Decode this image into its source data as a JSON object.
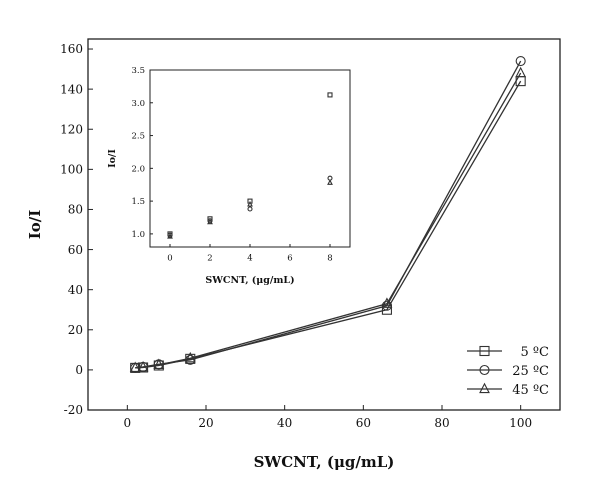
{
  "chart_data": [
    {
      "type": "line",
      "xlabel": "SWCNT, (μg/mL)",
      "ylabel": "Io/I",
      "xlim": [
        -10,
        110
      ],
      "ylim": [
        -20,
        165
      ],
      "xticks": [
        0,
        20,
        40,
        60,
        80,
        100
      ],
      "yticks": [
        -20,
        0,
        20,
        40,
        60,
        80,
        100,
        120,
        140,
        160
      ],
      "grid": false,
      "legend_position": "bottom-right",
      "series": [
        {
          "name": "5 ºC",
          "marker": "square",
          "x": [
            2,
            4,
            8,
            16,
            66,
            100
          ],
          "y": [
            1.0,
            1.2,
            2.2,
            5.5,
            30,
            144
          ]
        },
        {
          "name": "25 ºC",
          "marker": "circle",
          "x": [
            2,
            4,
            8,
            16,
            66,
            100
          ],
          "y": [
            1.0,
            1.5,
            2.8,
            5.0,
            32,
            154
          ]
        },
        {
          "name": "45 ºC",
          "marker": "triangle",
          "x": [
            2,
            4,
            8,
            16,
            66,
            100
          ],
          "y": [
            1.0,
            1.3,
            2.5,
            5.8,
            33,
            148
          ]
        }
      ]
    },
    {
      "type": "scatter",
      "xlabel": "SWCNT, (μg/mL)",
      "ylabel": "Io/I",
      "xlim": [
        -1,
        9
      ],
      "ylim": [
        0.8,
        3.5
      ],
      "xticks": [
        0,
        2,
        4,
        6,
        8
      ],
      "yticks": [
        1.0,
        1.5,
        2.0,
        2.5,
        3.0,
        3.5
      ],
      "grid": false,
      "series": [
        {
          "marker": "square",
          "x": [
            0,
            2,
            4,
            8
          ],
          "y": [
            1.0,
            1.23,
            1.5,
            3.12
          ]
        },
        {
          "marker": "circle",
          "x": [
            0,
            2,
            4,
            8
          ],
          "y": [
            0.98,
            1.2,
            1.38,
            1.85
          ]
        },
        {
          "marker": "triangle",
          "x": [
            0,
            2,
            4,
            8
          ],
          "y": [
            0.96,
            1.18,
            1.45,
            1.78
          ]
        }
      ]
    }
  ]
}
